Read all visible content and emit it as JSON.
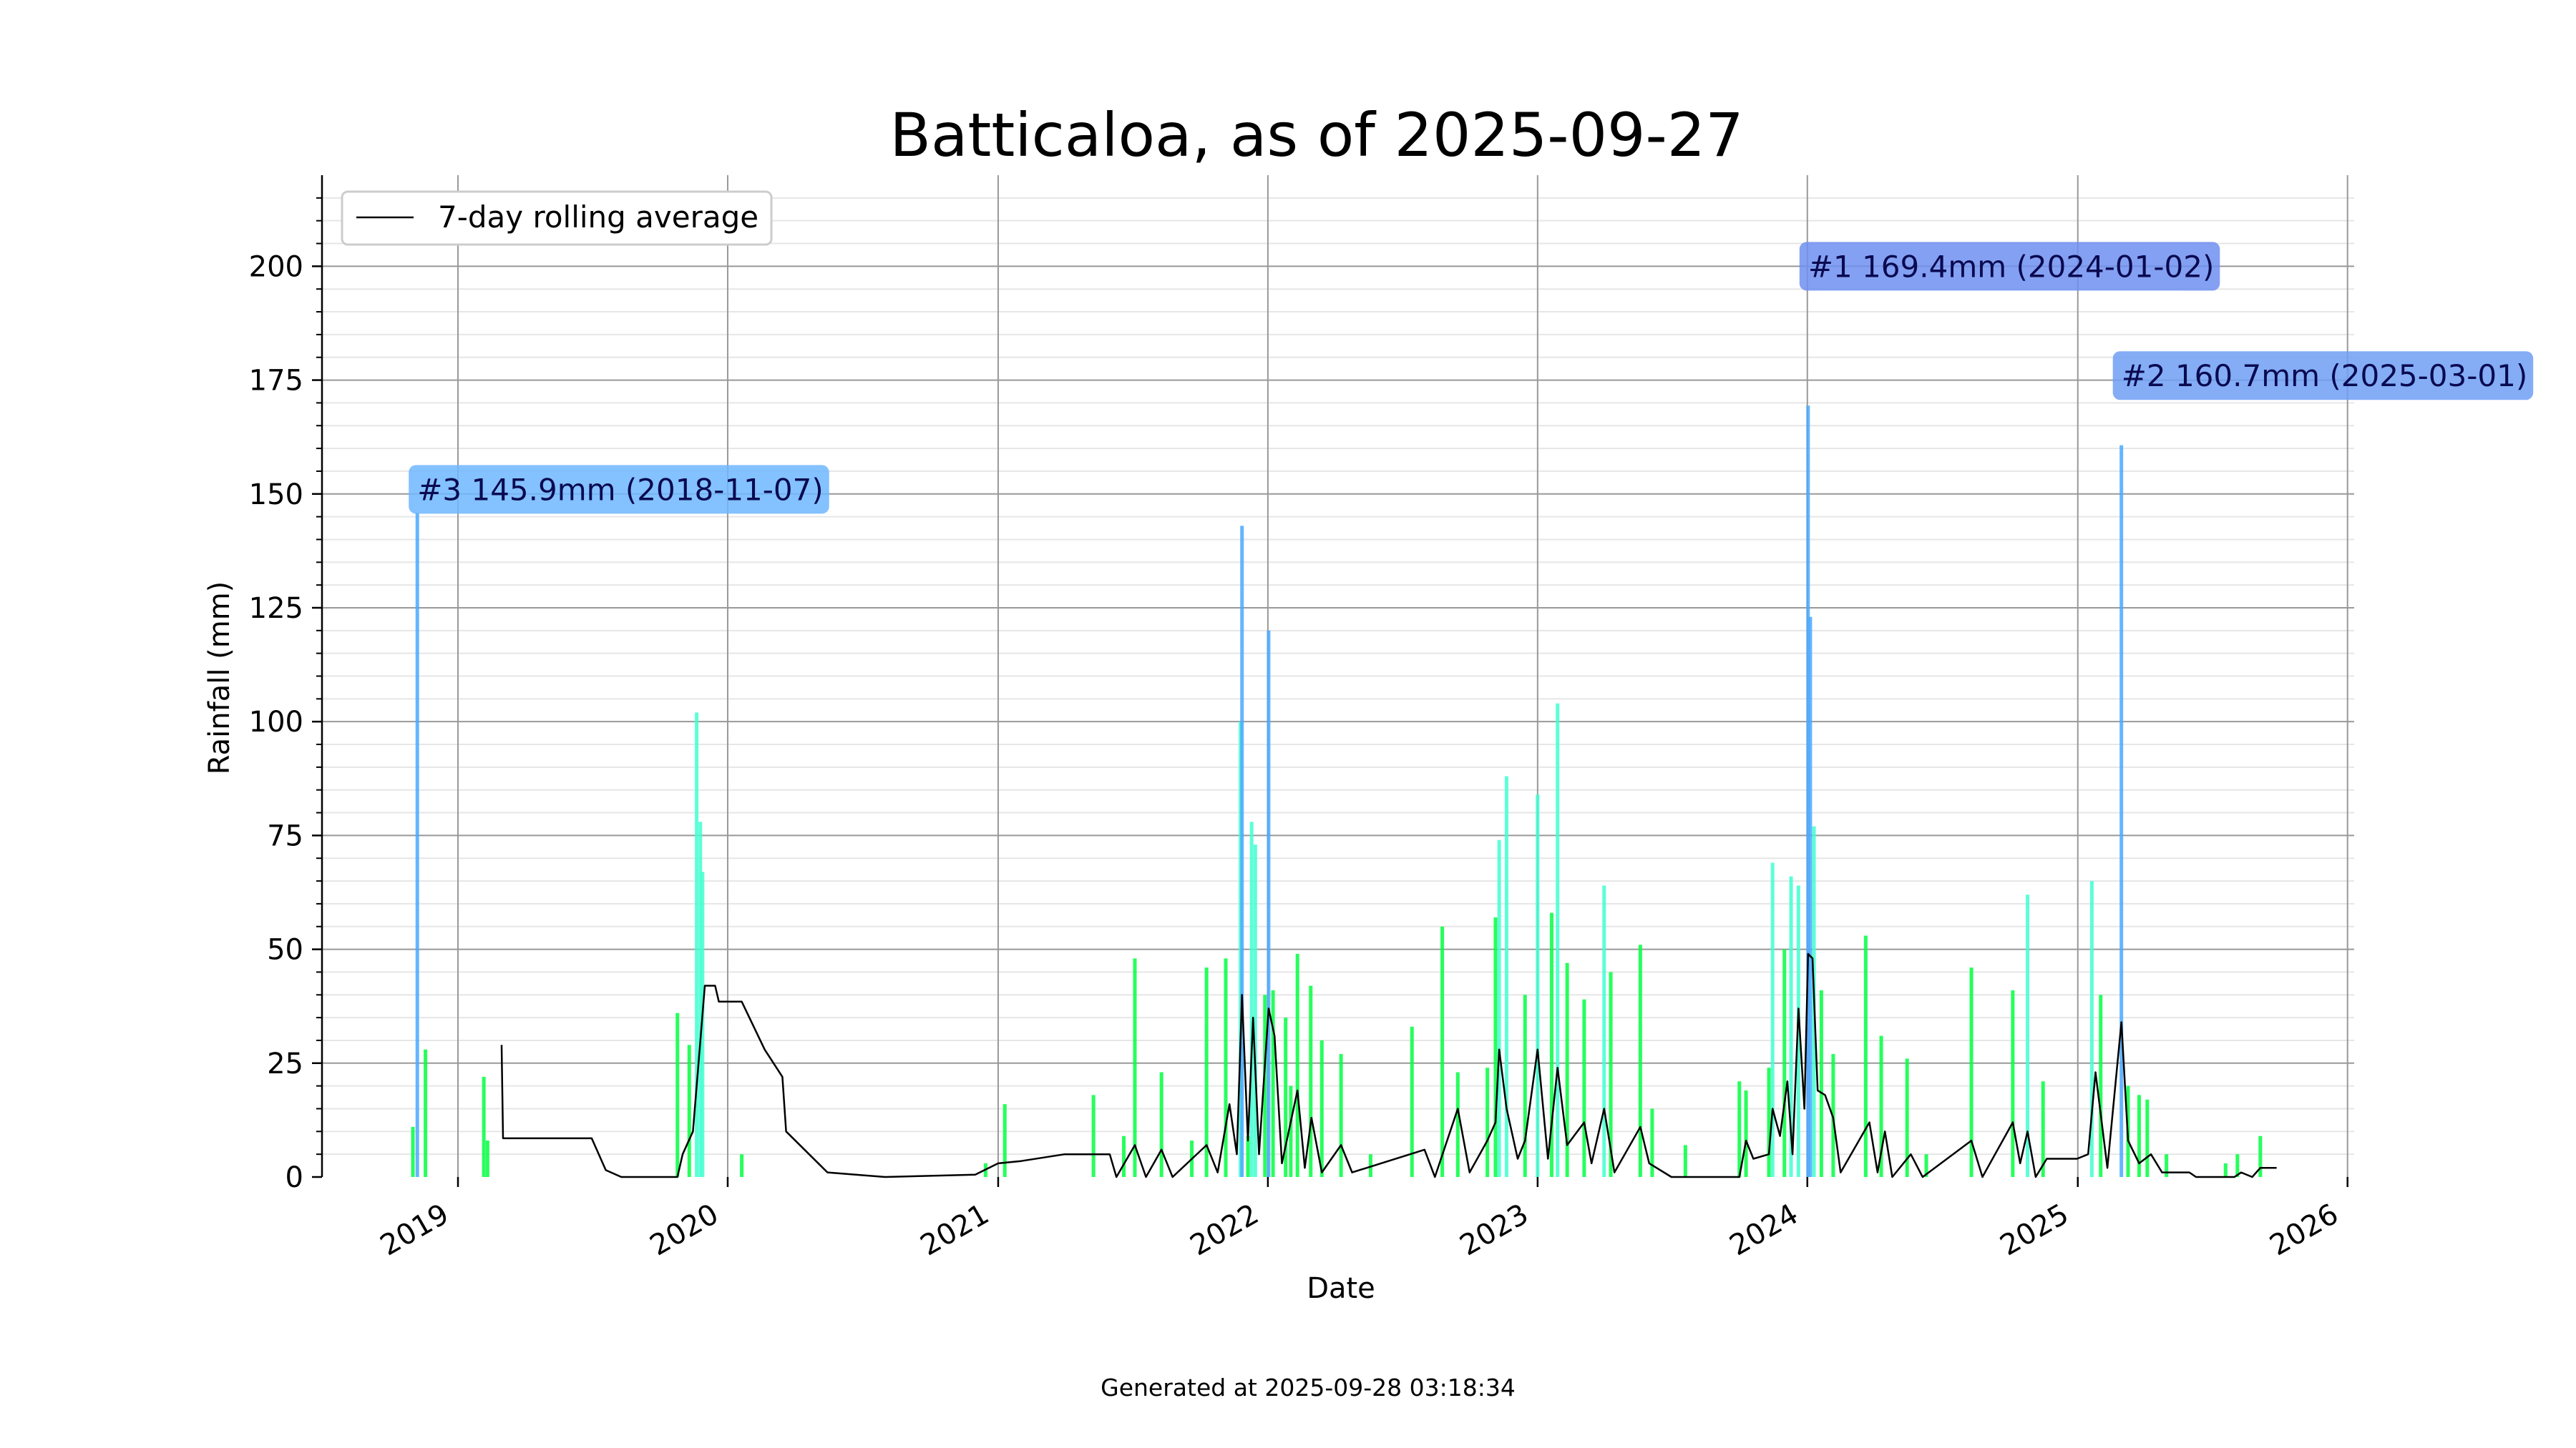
{
  "chart_data": {
    "type": "bar",
    "title": "Batticaloa, as of 2025-09-27",
    "xlabel": "Date",
    "ylabel": "Rainfall (mm)",
    "xlim": [
      "2018-07-01",
      "2026-01-10"
    ],
    "ylim": [
      0,
      220
    ],
    "x_ticks": [
      "2019",
      "2020",
      "2021",
      "2022",
      "2023",
      "2024",
      "2025",
      "2026"
    ],
    "y_ticks": [
      0,
      25,
      50,
      75,
      100,
      125,
      150,
      175,
      200
    ],
    "grid": true,
    "legend": {
      "placement": "top-left",
      "entries": [
        "7-day rolling average"
      ]
    },
    "colors": {
      "bar_low": "#00ff40",
      "bar_mid": "#40ffd0",
      "bar_high": "#4aa8ff",
      "rolling": "#000000"
    },
    "footer": "Generated at 2025-09-28 03:18:34",
    "annotations": [
      {
        "label": "#1 169.4mm (2024-01-02)",
        "date": "2024-01-02",
        "value": 169.4,
        "box_y": 200,
        "color": "#6f8ff0"
      },
      {
        "label": "#2 160.7mm (2025-03-01)",
        "date": "2025-03-01",
        "value": 160.7,
        "box_y": 176,
        "color": "#6f9ff5"
      },
      {
        "label": "#3 145.9mm (2018-11-07)",
        "date": "2018-11-07",
        "value": 145.9,
        "box_y": 151,
        "color": "#6fb6ff"
      }
    ],
    "series": [
      {
        "name": "daily",
        "points": [
          [
            "2018-11-01",
            11
          ],
          [
            "2018-11-07",
            145.9
          ],
          [
            "2018-11-18",
            28
          ],
          [
            "2019-02-05",
            22
          ],
          [
            "2019-02-10",
            8
          ],
          [
            "2019-10-25",
            36
          ],
          [
            "2019-11-10",
            29
          ],
          [
            "2019-11-20",
            102
          ],
          [
            "2019-11-25",
            78
          ],
          [
            "2019-11-28",
            67
          ],
          [
            "2020-01-20",
            5
          ],
          [
            "2020-12-15",
            3
          ],
          [
            "2021-01-10",
            16
          ],
          [
            "2021-05-10",
            18
          ],
          [
            "2021-06-20",
            9
          ],
          [
            "2021-07-05",
            48
          ],
          [
            "2021-08-10",
            23
          ],
          [
            "2021-09-20",
            8
          ],
          [
            "2021-10-10",
            46
          ],
          [
            "2021-11-05",
            48
          ],
          [
            "2021-11-25",
            100
          ],
          [
            "2021-11-27",
            143
          ],
          [
            "2021-12-05",
            9
          ],
          [
            "2021-12-10",
            78
          ],
          [
            "2021-12-15",
            73
          ],
          [
            "2021-12-28",
            40
          ],
          [
            "2022-01-02",
            120
          ],
          [
            "2022-01-08",
            41
          ],
          [
            "2022-01-25",
            35
          ],
          [
            "2022-02-01",
            20
          ],
          [
            "2022-02-10",
            49
          ],
          [
            "2022-02-28",
            42
          ],
          [
            "2022-03-15",
            30
          ],
          [
            "2022-04-10",
            27
          ],
          [
            "2022-05-20",
            5
          ],
          [
            "2022-07-15",
            33
          ],
          [
            "2022-08-25",
            55
          ],
          [
            "2022-09-15",
            23
          ],
          [
            "2022-10-25",
            24
          ],
          [
            "2022-11-05",
            57
          ],
          [
            "2022-11-10",
            74
          ],
          [
            "2022-11-20",
            88
          ],
          [
            "2022-12-15",
            40
          ],
          [
            "2023-01-01",
            84
          ],
          [
            "2023-01-20",
            58
          ],
          [
            "2023-01-28",
            104
          ],
          [
            "2023-02-10",
            47
          ],
          [
            "2023-03-05",
            39
          ],
          [
            "2023-04-01",
            64
          ],
          [
            "2023-04-10",
            45
          ],
          [
            "2023-05-20",
            51
          ],
          [
            "2023-06-05",
            15
          ],
          [
            "2023-07-20",
            7
          ],
          [
            "2023-10-01",
            21
          ],
          [
            "2023-10-10",
            19
          ],
          [
            "2023-11-10",
            24
          ],
          [
            "2023-11-15",
            69
          ],
          [
            "2023-12-01",
            50
          ],
          [
            "2023-12-10",
            66
          ],
          [
            "2023-12-20",
            64
          ],
          [
            "2024-01-02",
            169.4
          ],
          [
            "2024-01-05",
            123
          ],
          [
            "2024-01-10",
            77
          ],
          [
            "2024-01-20",
            41
          ],
          [
            "2024-02-05",
            27
          ],
          [
            "2024-03-20",
            53
          ],
          [
            "2024-04-10",
            31
          ],
          [
            "2024-05-15",
            26
          ],
          [
            "2024-06-10",
            5
          ],
          [
            "2024-08-10",
            46
          ],
          [
            "2024-10-05",
            41
          ],
          [
            "2024-10-25",
            62
          ],
          [
            "2024-11-15",
            21
          ],
          [
            "2025-01-20",
            65
          ],
          [
            "2025-02-01",
            40
          ],
          [
            "2025-03-01",
            160.7
          ],
          [
            "2025-03-10",
            20
          ],
          [
            "2025-03-25",
            18
          ],
          [
            "2025-04-05",
            17
          ],
          [
            "2025-05-01",
            5
          ],
          [
            "2025-07-20",
            3
          ],
          [
            "2025-08-05",
            5
          ],
          [
            "2025-09-05",
            9
          ]
        ]
      },
      {
        "name": "7-day rolling average",
        "points": [
          [
            "2019-03-01",
            29
          ],
          [
            "2019-03-03",
            8.5
          ],
          [
            "2019-07-01",
            8.5
          ],
          [
            "2019-07-20",
            1.5
          ],
          [
            "2019-08-10",
            0
          ],
          [
            "2019-10-25",
            0
          ],
          [
            "2019-11-01",
            5
          ],
          [
            "2019-11-15",
            10
          ],
          [
            "2019-11-25",
            30
          ],
          [
            "2019-12-01",
            42
          ],
          [
            "2019-12-15",
            42
          ],
          [
            "2019-12-20",
            38.5
          ],
          [
            "2020-01-20",
            38.5
          ],
          [
            "2020-02-20",
            28
          ],
          [
            "2020-03-15",
            22
          ],
          [
            "2020-03-20",
            10
          ],
          [
            "2020-05-15",
            1
          ],
          [
            "2020-08-01",
            0
          ],
          [
            "2020-12-01",
            0.5
          ],
          [
            "2021-01-01",
            3
          ],
          [
            "2021-02-01",
            3.5
          ],
          [
            "2021-04-01",
            5
          ],
          [
            "2021-06-01",
            5
          ],
          [
            "2021-06-10",
            0
          ],
          [
            "2021-07-05",
            7
          ],
          [
            "2021-07-20",
            0
          ],
          [
            "2021-08-10",
            6
          ],
          [
            "2021-08-25",
            0
          ],
          [
            "2021-10-10",
            7
          ],
          [
            "2021-10-25",
            1
          ],
          [
            "2021-11-10",
            16
          ],
          [
            "2021-11-20",
            5
          ],
          [
            "2021-11-27",
            40
          ],
          [
            "2021-12-05",
            8
          ],
          [
            "2021-12-12",
            35
          ],
          [
            "2021-12-20",
            5
          ],
          [
            "2022-01-02",
            37
          ],
          [
            "2022-01-10",
            31
          ],
          [
            "2022-01-20",
            3
          ],
          [
            "2022-02-10",
            19
          ],
          [
            "2022-02-20",
            2
          ],
          [
            "2022-03-01",
            13
          ],
          [
            "2022-03-15",
            1
          ],
          [
            "2022-04-10",
            7
          ],
          [
            "2022-04-25",
            1
          ],
          [
            "2022-08-01",
            6
          ],
          [
            "2022-08-15",
            0
          ],
          [
            "2022-09-15",
            15
          ],
          [
            "2022-10-01",
            1
          ],
          [
            "2022-10-25",
            8
          ],
          [
            "2022-11-05",
            12
          ],
          [
            "2022-11-10",
            28
          ],
          [
            "2022-11-20",
            15
          ],
          [
            "2022-12-05",
            4
          ],
          [
            "2022-12-15",
            8
          ],
          [
            "2023-01-01",
            28
          ],
          [
            "2023-01-15",
            4
          ],
          [
            "2023-01-28",
            24
          ],
          [
            "2023-02-10",
            7
          ],
          [
            "2023-03-05",
            12
          ],
          [
            "2023-03-15",
            3
          ],
          [
            "2023-04-01",
            15
          ],
          [
            "2023-04-15",
            1
          ],
          [
            "2023-05-20",
            11
          ],
          [
            "2023-06-01",
            3
          ],
          [
            "2023-07-01",
            0
          ],
          [
            "2023-10-01",
            0
          ],
          [
            "2023-10-10",
            8
          ],
          [
            "2023-10-20",
            4
          ],
          [
            "2023-11-10",
            5
          ],
          [
            "2023-11-15",
            15
          ],
          [
            "2023-11-25",
            9
          ],
          [
            "2023-12-05",
            21
          ],
          [
            "2023-12-12",
            5
          ],
          [
            "2023-12-20",
            37
          ],
          [
            "2023-12-28",
            15
          ],
          [
            "2024-01-02",
            49
          ],
          [
            "2024-01-08",
            48
          ],
          [
            "2024-01-15",
            19
          ],
          [
            "2024-01-25",
            18
          ],
          [
            "2024-02-05",
            13
          ],
          [
            "2024-02-15",
            1
          ],
          [
            "2024-03-25",
            12
          ],
          [
            "2024-04-05",
            1
          ],
          [
            "2024-04-15",
            10
          ],
          [
            "2024-04-25",
            0
          ],
          [
            "2024-05-20",
            5
          ],
          [
            "2024-06-05",
            0
          ],
          [
            "2024-08-10",
            8
          ],
          [
            "2024-08-25",
            0
          ],
          [
            "2024-10-05",
            12
          ],
          [
            "2024-10-15",
            3
          ],
          [
            "2024-10-25",
            10
          ],
          [
            "2024-11-05",
            0
          ],
          [
            "2024-11-20",
            4
          ],
          [
            "2024-12-31",
            4
          ],
          [
            "2025-01-15",
            5
          ],
          [
            "2025-01-25",
            23
          ],
          [
            "2025-02-10",
            2
          ],
          [
            "2025-03-01",
            34
          ],
          [
            "2025-03-10",
            8
          ],
          [
            "2025-03-25",
            3
          ],
          [
            "2025-04-10",
            5
          ],
          [
            "2025-04-25",
            1
          ],
          [
            "2025-06-01",
            1
          ],
          [
            "2025-06-10",
            0
          ],
          [
            "2025-08-01",
            0
          ],
          [
            "2025-08-10",
            1
          ],
          [
            "2025-08-25",
            0
          ],
          [
            "2025-09-05",
            2
          ],
          [
            "2025-09-27",
            2
          ]
        ]
      }
    ]
  }
}
